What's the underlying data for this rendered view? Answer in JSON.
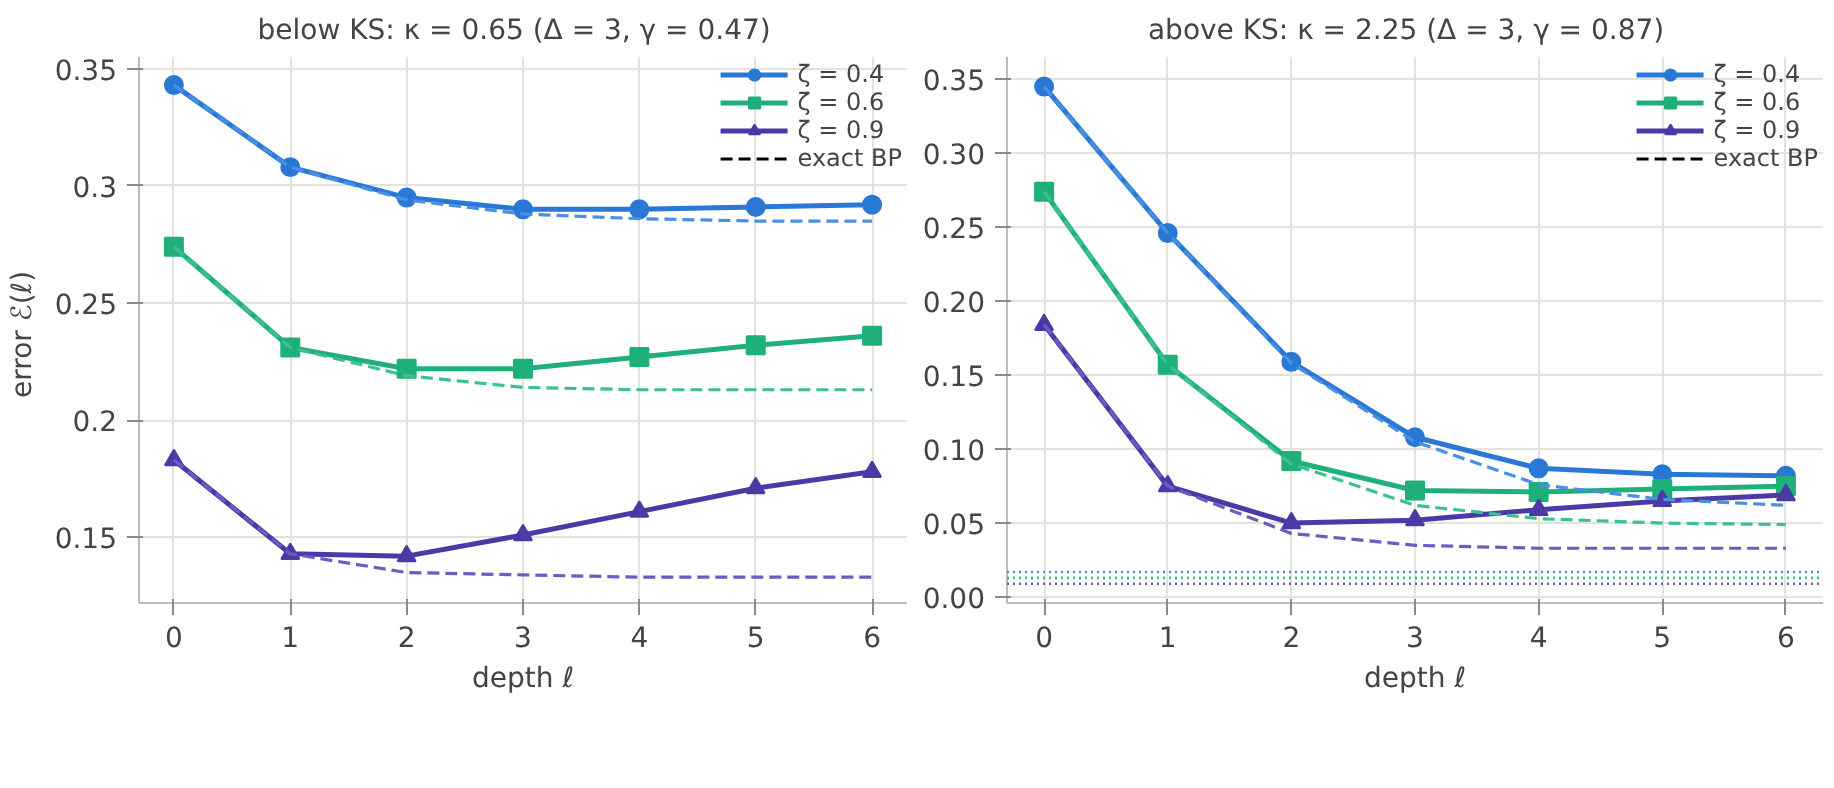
{
  "chart_data": [
    {
      "type": "line",
      "title": "below KS: κ = 0.65  (Δ = 3,  γ = 0.47)",
      "xlabel": "depth ℓ",
      "ylabel": "error  ℰ(ℓ)",
      "x": [
        0,
        1,
        2,
        3,
        4,
        5,
        6
      ],
      "xlim": [
        -0.3,
        6.3
      ],
      "xticks": [
        0,
        1,
        2,
        3,
        4,
        5,
        6
      ],
      "ylim": [
        0.122,
        0.355
      ],
      "yticks": [
        0.15,
        0.2,
        0.25,
        0.3,
        0.35
      ],
      "grid": true,
      "legend": "top right",
      "series": [
        {
          "name": "ζ = 0.4",
          "color": "#2a78d6",
          "marker": "circle",
          "line_style": "solid",
          "values": [
            0.343,
            0.308,
            0.295,
            0.29,
            0.29,
            0.291,
            0.292
          ]
        },
        {
          "name": "ζ = 0.6",
          "color": "#1fb07a",
          "marker": "square",
          "line_style": "solid",
          "values": [
            0.274,
            0.231,
            0.222,
            0.222,
            0.227,
            0.232,
            0.236
          ]
        },
        {
          "name": "ζ = 0.9",
          "color": "#4b3aa6",
          "marker": "triangle",
          "line_style": "solid",
          "values": [
            0.183,
            0.143,
            0.142,
            0.151,
            0.161,
            0.171,
            0.178
          ]
        },
        {
          "name": "exact BP",
          "color": "#000000",
          "marker": "none",
          "line_style": "dashed",
          "values": [
            null,
            null,
            null,
            null,
            null,
            null,
            null
          ]
        },
        {
          "color": "#4a90e2",
          "marker": "none",
          "line_style": "dashed",
          "values": [
            0.343,
            0.308,
            0.294,
            0.288,
            0.286,
            0.285,
            0.285
          ]
        },
        {
          "color": "#3cc08f",
          "marker": "none",
          "line_style": "dashed",
          "values": [
            0.274,
            0.231,
            0.219,
            0.214,
            0.213,
            0.213,
            0.213
          ]
        },
        {
          "color": "#6a5cc0",
          "marker": "none",
          "line_style": "dashed",
          "values": [
            0.183,
            0.143,
            0.135,
            0.134,
            0.133,
            0.133,
            0.133
          ]
        }
      ]
    },
    {
      "type": "line",
      "title": "above KS: κ = 2.25  (Δ = 3,  γ = 0.87)",
      "xlabel": "depth ℓ",
      "x": [
        0,
        1,
        2,
        3,
        4,
        5,
        6
      ],
      "xlim": [
        -0.3,
        6.3
      ],
      "xticks": [
        0,
        1,
        2,
        3,
        4,
        5,
        6
      ],
      "ylim": [
        -0.004,
        0.365
      ],
      "yticks": [
        {
          "value": 0,
          "label": "0.00"
        },
        {
          "value": 0.05,
          "label": "0.05"
        },
        {
          "value": 0.1,
          "label": "0.10"
        },
        {
          "value": 0.15,
          "label": "0.15"
        },
        {
          "value": 0.2,
          "label": "0.20"
        },
        {
          "value": 0.25,
          "label": "0.25"
        },
        {
          "value": 0.3,
          "label": "0.30"
        },
        {
          "value": 0.35,
          "label": "0.35"
        }
      ],
      "grid": true,
      "legend": "top right",
      "series": [
        {
          "name": "ζ = 0.4",
          "color": "#2a78d6",
          "marker": "circle",
          "line_style": "solid",
          "values": [
            0.345,
            0.246,
            0.159,
            0.108,
            0.087,
            0.083,
            0.082
          ]
        },
        {
          "name": "ζ = 0.6",
          "color": "#1fb07a",
          "marker": "square",
          "line_style": "solid",
          "values": [
            0.274,
            0.157,
            0.092,
            0.072,
            0.071,
            0.073,
            0.075
          ]
        },
        {
          "name": "ζ = 0.9",
          "color": "#4b3aa6",
          "marker": "triangle",
          "line_style": "solid",
          "values": [
            0.184,
            0.075,
            0.05,
            0.052,
            0.059,
            0.065,
            0.069
          ]
        },
        {
          "name": "exact BP",
          "color": "#000000",
          "marker": "none",
          "line_style": "dashed",
          "values": [
            null,
            null,
            null,
            null,
            null,
            null,
            null
          ]
        },
        {
          "color": "#4a90e2",
          "marker": "none",
          "line_style": "dashed",
          "values": [
            0.345,
            0.246,
            0.158,
            0.105,
            0.076,
            0.066,
            0.062
          ]
        },
        {
          "color": "#3cc08f",
          "marker": "none",
          "line_style": "dashed",
          "values": [
            0.274,
            0.157,
            0.09,
            0.062,
            0.053,
            0.05,
            0.049
          ]
        },
        {
          "color": "#6a5cc0",
          "marker": "none",
          "line_style": "dashed",
          "values": [
            0.184,
            0.075,
            0.043,
            0.035,
            0.033,
            0.033,
            0.033
          ]
        }
      ],
      "ref_lines": [
        {
          "axis": "y",
          "value": 0.017,
          "color": "#4a90e2",
          "line_style": "dotted"
        },
        {
          "axis": "y",
          "value": 0.013,
          "color": "#3cc08f",
          "line_style": "dotted"
        },
        {
          "axis": "y",
          "value": 0.009,
          "color": "#6a5cc0",
          "line_style": "dotted"
        }
      ]
    }
  ]
}
